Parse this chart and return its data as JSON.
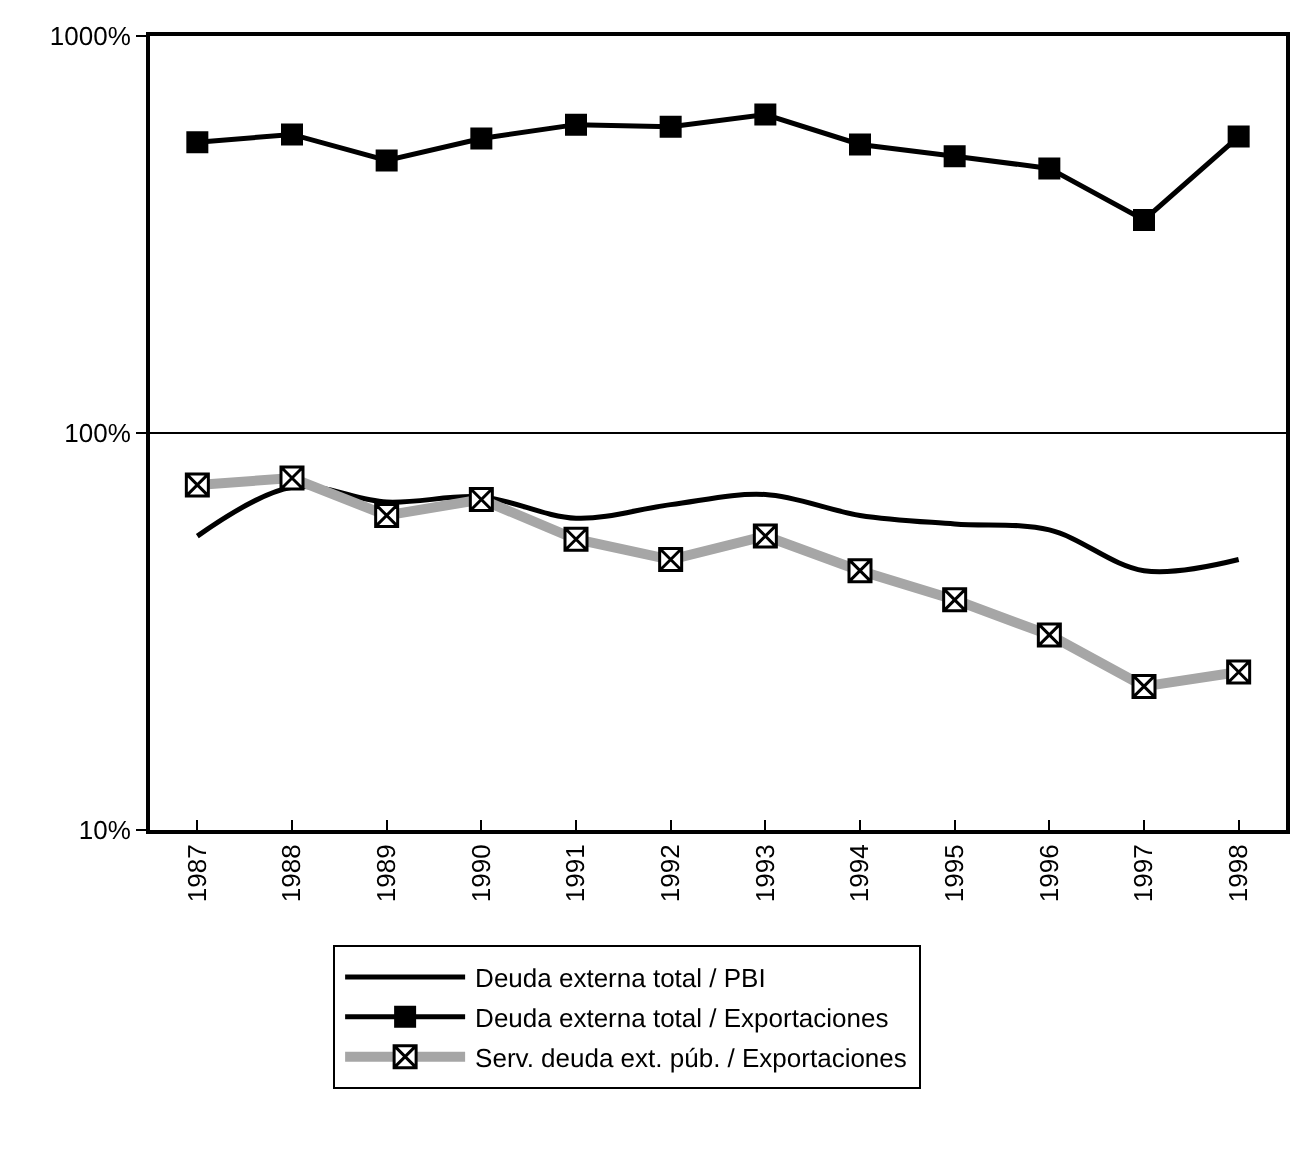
{
  "chart_data": {
    "type": "line",
    "categories": [
      "1987",
      "1988",
      "1989",
      "1990",
      "1991",
      "1992",
      "1993",
      "1994",
      "1995",
      "1996",
      "1997",
      "1998"
    ],
    "series": [
      {
        "name": "Deuda externa total / PBI",
        "color": "#000000",
        "marker": "none",
        "values": [
          55,
          73,
          67,
          69,
          61,
          66,
          70,
          62,
          59,
          57,
          45,
          48
        ]
      },
      {
        "name": "Deuda externa total / Exportaciones",
        "color": "#000000",
        "marker": "square",
        "values": [
          540,
          565,
          486,
          552,
          598,
          591,
          634,
          533,
          498,
          464,
          344,
          558
        ]
      },
      {
        "name": "Serv. deuda ext. púb. / Exportaciones",
        "color": "#a6a6a6",
        "marker": "cross",
        "values": [
          74,
          77,
          62,
          68,
          54,
          48,
          55,
          45,
          38,
          31,
          23,
          25
        ]
      }
    ],
    "log": "y",
    "ylim": [
      10,
      1000
    ],
    "yticks": [
      {
        "value": 10,
        "label": "10%"
      },
      {
        "value": 100,
        "label": "100%"
      },
      {
        "value": 1000,
        "label": "1000%"
      }
    ],
    "grid": "y",
    "legend": "bottom"
  }
}
